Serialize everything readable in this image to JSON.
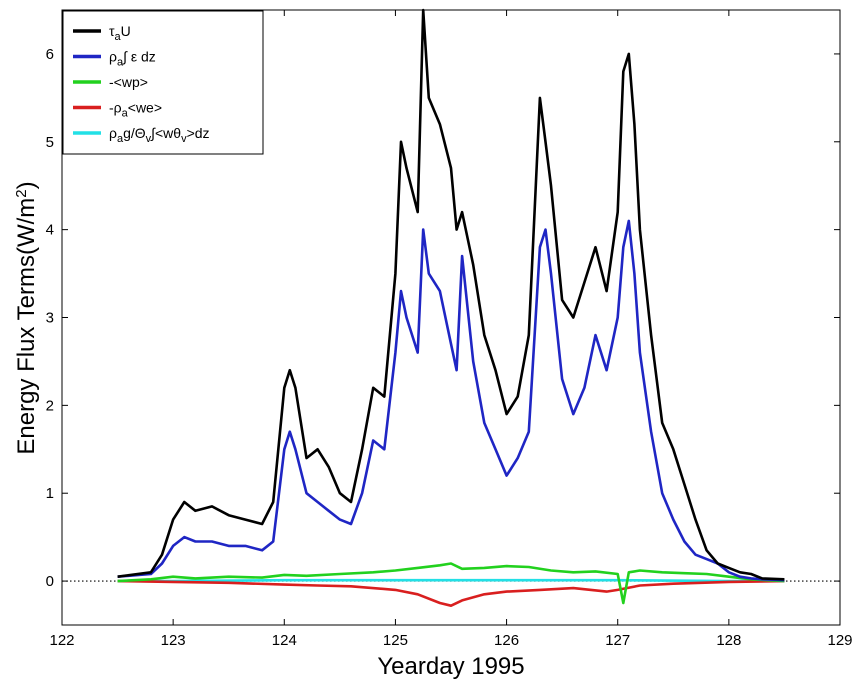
{
  "chart_data": {
    "type": "line",
    "xlabel": "Yearday 1995",
    "ylabel": "Energy Flux Terms(W/m²)",
    "ylabel_parts": {
      "main": "Energy Flux Terms(W/m",
      "sup": "2",
      "close": ")"
    },
    "xlim": [
      122,
      129
    ],
    "ylim": [
      -0.5,
      6.5
    ],
    "x_ticks": [
      122,
      123,
      124,
      125,
      126,
      127,
      128,
      129
    ],
    "y_ticks": [
      0,
      1,
      2,
      3,
      4,
      5,
      6
    ],
    "x_tick_labels": [
      "122",
      "123",
      "124",
      "125",
      "126",
      "127",
      "128",
      "129"
    ],
    "y_tick_labels": [
      "0",
      "1",
      "2",
      "3",
      "4",
      "5",
      "6"
    ],
    "zero_line": "dotted",
    "grid": false,
    "legend_position": "top-left",
    "series": [
      {
        "name": "τaU",
        "legend": {
          "base": "τ",
          "sub": "a",
          "rest": "U"
        },
        "color": "#000000",
        "x": [
          122.5,
          122.8,
          122.9,
          123.0,
          123.1,
          123.2,
          123.35,
          123.5,
          123.65,
          123.8,
          123.9,
          124.0,
          124.05,
          124.1,
          124.2,
          124.3,
          124.4,
          124.5,
          124.6,
          124.7,
          124.8,
          124.9,
          125.0,
          125.05,
          125.1,
          125.2,
          125.25,
          125.3,
          125.4,
          125.5,
          125.55,
          125.6,
          125.7,
          125.8,
          125.9,
          126.0,
          126.1,
          126.2,
          126.3,
          126.35,
          126.4,
          126.5,
          126.6,
          126.7,
          126.8,
          126.9,
          127.0,
          127.05,
          127.1,
          127.15,
          127.2,
          127.3,
          127.4,
          127.5,
          127.6,
          127.7,
          127.8,
          127.9,
          128.0,
          128.1,
          128.2,
          128.3,
          128.5
        ],
        "y": [
          0.05,
          0.1,
          0.3,
          0.7,
          0.9,
          0.8,
          0.85,
          0.75,
          0.7,
          0.65,
          0.9,
          2.2,
          2.4,
          2.2,
          1.4,
          1.5,
          1.3,
          1.0,
          0.9,
          1.5,
          2.2,
          2.1,
          3.5,
          5.0,
          4.7,
          4.2,
          6.5,
          5.5,
          5.2,
          4.7,
          4.0,
          4.2,
          3.6,
          2.8,
          2.4,
          1.9,
          2.1,
          2.8,
          5.5,
          5.0,
          4.5,
          3.2,
          3.0,
          3.4,
          3.8,
          3.3,
          4.2,
          5.8,
          6.0,
          5.2,
          4.0,
          2.8,
          1.8,
          1.5,
          1.1,
          0.7,
          0.35,
          0.2,
          0.15,
          0.1,
          0.08,
          0.03,
          0.02
        ]
      },
      {
        "name": "ρa∫ ε dz",
        "legend": {
          "base": "ρ",
          "sub": "a",
          "rest": "∫ ε dz"
        },
        "color": "#1f26c4",
        "x": [
          122.5,
          122.8,
          122.9,
          123.0,
          123.1,
          123.2,
          123.35,
          123.5,
          123.65,
          123.8,
          123.9,
          124.0,
          124.05,
          124.1,
          124.2,
          124.3,
          124.4,
          124.5,
          124.6,
          124.7,
          124.8,
          124.9,
          125.0,
          125.05,
          125.1,
          125.2,
          125.25,
          125.3,
          125.4,
          125.5,
          125.55,
          125.6,
          125.7,
          125.8,
          125.9,
          126.0,
          126.1,
          126.2,
          126.3,
          126.35,
          126.4,
          126.5,
          126.6,
          126.7,
          126.8,
          126.9,
          127.0,
          127.05,
          127.1,
          127.15,
          127.2,
          127.3,
          127.4,
          127.5,
          127.6,
          127.7,
          127.8,
          127.9,
          128.0,
          128.1,
          128.2,
          128.3,
          128.5
        ],
        "y": [
          0.05,
          0.08,
          0.2,
          0.4,
          0.5,
          0.45,
          0.45,
          0.4,
          0.4,
          0.35,
          0.45,
          1.5,
          1.7,
          1.5,
          1.0,
          0.9,
          0.8,
          0.7,
          0.65,
          1.0,
          1.6,
          1.5,
          2.6,
          3.3,
          3.0,
          2.6,
          4.0,
          3.5,
          3.3,
          2.7,
          2.4,
          3.7,
          2.5,
          1.8,
          1.5,
          1.2,
          1.4,
          1.7,
          3.8,
          4.0,
          3.5,
          2.3,
          1.9,
          2.2,
          2.8,
          2.4,
          3.0,
          3.8,
          4.1,
          3.5,
          2.6,
          1.7,
          1.0,
          0.7,
          0.45,
          0.3,
          0.25,
          0.2,
          0.1,
          0.05,
          0.03,
          0.02,
          0.01
        ]
      },
      {
        "name": "-<wp>",
        "legend": {
          "base": "-<wp>",
          "sub": "",
          "rest": ""
        },
        "color": "#22d11e",
        "x": [
          122.5,
          122.8,
          123.0,
          123.2,
          123.5,
          123.8,
          124.0,
          124.2,
          124.5,
          124.8,
          125.0,
          125.2,
          125.4,
          125.5,
          125.6,
          125.8,
          126.0,
          126.2,
          126.4,
          126.6,
          126.8,
          127.0,
          127.05,
          127.1,
          127.2,
          127.4,
          127.6,
          127.8,
          128.0,
          128.2,
          128.5
        ],
        "y": [
          0.0,
          0.02,
          0.05,
          0.03,
          0.05,
          0.04,
          0.07,
          0.06,
          0.08,
          0.1,
          0.12,
          0.15,
          0.18,
          0.2,
          0.14,
          0.15,
          0.17,
          0.16,
          0.12,
          0.1,
          0.11,
          0.08,
          -0.25,
          0.1,
          0.12,
          0.1,
          0.09,
          0.08,
          0.05,
          0.02,
          0.0
        ]
      },
      {
        "name": "-ρa<we>",
        "legend": {
          "base": "-ρ",
          "sub": "a",
          "rest": "<we>"
        },
        "color": "#d91f1f",
        "x": [
          122.5,
          123.0,
          123.5,
          124.0,
          124.3,
          124.6,
          125.0,
          125.2,
          125.4,
          125.5,
          125.6,
          125.8,
          126.0,
          126.3,
          126.6,
          126.9,
          127.0,
          127.2,
          127.5,
          128.0,
          128.5
        ],
        "y": [
          0.0,
          -0.01,
          -0.02,
          -0.04,
          -0.05,
          -0.06,
          -0.1,
          -0.15,
          -0.25,
          -0.28,
          -0.22,
          -0.15,
          -0.12,
          -0.1,
          -0.08,
          -0.12,
          -0.1,
          -0.05,
          -0.03,
          -0.01,
          0.0
        ]
      },
      {
        "name": "ρag/Θv∫<wθv>dz",
        "legend": {
          "base": "ρ",
          "sub": "a",
          "rest": "g/Θ",
          "sub2": "v",
          "rest2": "∫<wθ",
          "sub3": "v",
          "rest3": ">dz"
        },
        "color": "#22e0e6",
        "x": [
          122.5,
          123.0,
          124.0,
          125.0,
          126.0,
          127.0,
          128.0,
          128.5
        ],
        "y": [
          0.0,
          0.0,
          0.01,
          0.01,
          0.01,
          0.01,
          0.0,
          0.0
        ]
      }
    ]
  }
}
